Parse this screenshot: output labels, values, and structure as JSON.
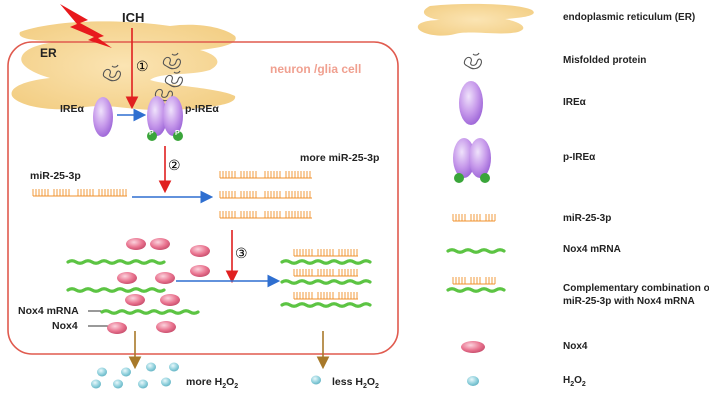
{
  "diagram": {
    "trigger_label": "ICH",
    "er_label": "ER",
    "cell_label": "neuron /glia cell",
    "steps": [
      "①",
      "②",
      "③"
    ],
    "ire_label": "IREα",
    "pire_label": "p-IREα",
    "phospho_label": "P",
    "mir_label": "miR-25-3p",
    "more_mir_label": "more miR-25-3p",
    "nox4_mrna_label": "Nox4 mRNA",
    "nox4_label": "Nox4",
    "more_h2o2": "more H",
    "less_h2o2": "less H",
    "sub2": "2",
    "sup_o": "O"
  },
  "legend": {
    "items": [
      "endoplasmic reticulum (ER)",
      "Misfolded protein",
      "IREα",
      "p-IREα",
      "miR-25-3p",
      "Nox4 mRNA",
      "Complementary combination of",
      "miR-25-3p with Nox4 mRNA",
      "Nox4",
      "H"
    ]
  },
  "colors": {
    "cell_border": "#e05a4e",
    "er_fill": "#f6d79a",
    "ire_fill": "#b882e6",
    "mrna": "#5cc443",
    "mirna": "#f0912b",
    "nox4": "#e9738f",
    "h2o2": "#8fd0dc",
    "arrow_red": "#e02020",
    "arrow_blue": "#2f6fd0",
    "arrow_brown": "#a8792a"
  }
}
